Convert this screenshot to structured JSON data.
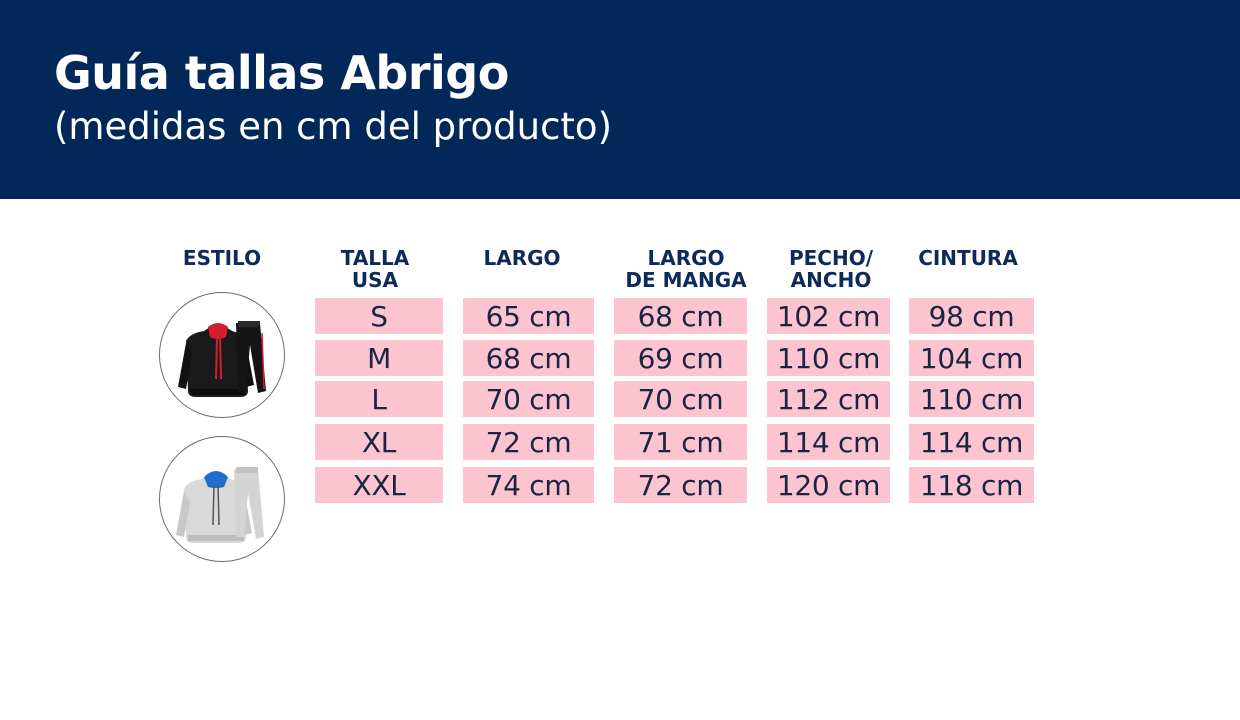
{
  "header": {
    "title": "Guía tallas Abrigo",
    "subtitle": "(medidas en cm del producto)"
  },
  "table": {
    "headers": [
      "ESTILO",
      "TALLA\nUSA",
      "LARGO",
      "LARGO\nDE MANGA",
      "PECHO/\nANCHO",
      "CINTURA"
    ],
    "rows": [
      [
        "S",
        "65 cm",
        "68 cm",
        "102 cm",
        "98 cm"
      ],
      [
        "M",
        "68 cm",
        "69 cm",
        "110 cm",
        "104 cm"
      ],
      [
        "L",
        "70 cm",
        "70 cm",
        "112 cm",
        "110 cm"
      ],
      [
        "XL",
        "72 cm",
        "71 cm",
        "114 cm",
        "114 cm"
      ],
      [
        "XXL",
        "74 cm",
        "72 cm",
        "120 cm",
        "118 cm"
      ]
    ]
  },
  "styles": [
    {
      "icon": "black-tracksuit-icon",
      "body_color": "#1a1a1a",
      "accent_color": "#d41e2f"
    },
    {
      "icon": "grey-tracksuit-icon",
      "body_color": "#d9d9d9",
      "accent_color": "#1e6fd0"
    }
  ],
  "colors": {
    "header_bg": "#02285a",
    "cell_bg": "#fbc4d0",
    "heading_text": "#0c2a5a"
  }
}
